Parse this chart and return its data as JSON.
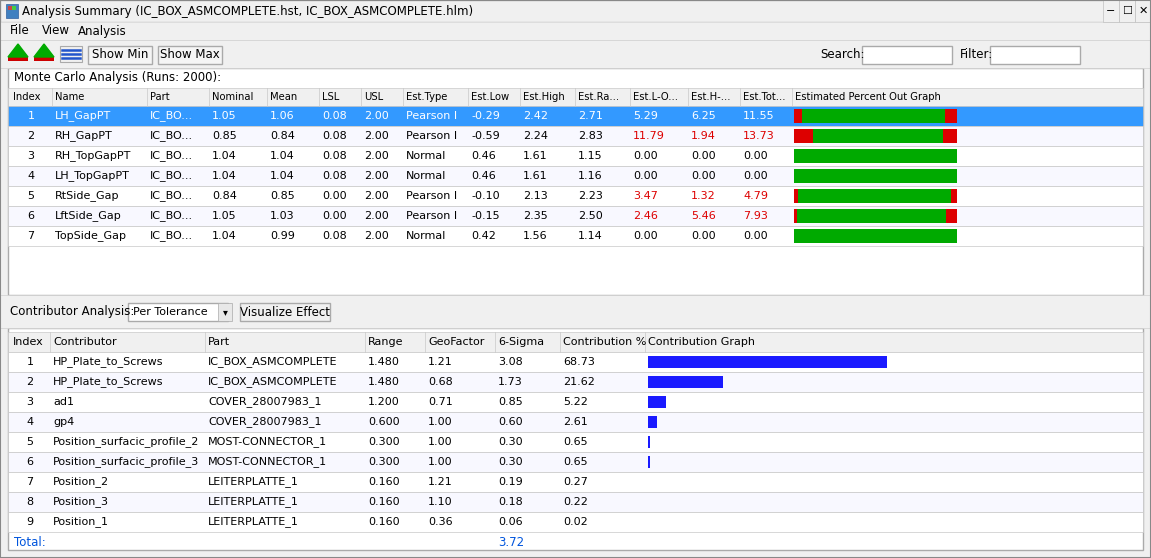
{
  "title": "Analysis Summary (IC_BOX_ASMCOMPLETE.hst, IC_BOX_ASMCOMPLETE.hlm)",
  "menu_items": [
    "File",
    "View",
    "Analysis"
  ],
  "toolbar_buttons": [
    "Show Min",
    "Show Max"
  ],
  "search_label": "Search:",
  "filter_label": "Filter:",
  "mc_section_title": "Monte Carlo Analysis (Runs: 2000):",
  "mc_headers": [
    "Index",
    "Name",
    "Part",
    "Nominal",
    "Mean",
    "LSL",
    "USL",
    "Est.Type",
    "Est.Low",
    "Est.High",
    "Est.Ra...",
    "Est.L-O...",
    "Est.H-...",
    "Est.Tot...",
    "Estimated Percent Out Graph"
  ],
  "mc_col_widths": [
    42,
    95,
    62,
    58,
    52,
    42,
    42,
    65,
    52,
    55,
    55,
    58,
    52,
    52,
    167
  ],
  "mc_rows": [
    [
      1,
      "LH_GapPT",
      "IC_BO...",
      "1.05",
      "1.06",
      "0.08",
      "2.00",
      "Pearson I",
      "-0.29",
      "2.42",
      "2.71",
      "5.29",
      "6.25",
      "11.55",
      [
        5,
        88,
        7
      ]
    ],
    [
      2,
      "RH_GapPT",
      "IC_BO...",
      "0.85",
      "0.84",
      "0.08",
      "2.00",
      "Pearson I",
      "-0.59",
      "2.24",
      "2.83",
      "11.79",
      "1.94",
      "13.73",
      [
        12,
        80,
        8
      ]
    ],
    [
      3,
      "RH_TopGapPT",
      "IC_BO...",
      "1.04",
      "1.04",
      "0.08",
      "2.00",
      "Normal",
      "0.46",
      "1.61",
      "1.15",
      "0.00",
      "0.00",
      "0.00",
      [
        0,
        100,
        0
      ]
    ],
    [
      4,
      "LH_TopGapPT",
      "IC_BO...",
      "1.04",
      "1.04",
      "0.08",
      "2.00",
      "Normal",
      "0.46",
      "1.61",
      "1.16",
      "0.00",
      "0.00",
      "0.00",
      [
        0,
        100,
        0
      ]
    ],
    [
      5,
      "RtSide_Gap",
      "IC_BO...",
      "0.84",
      "0.85",
      "0.00",
      "2.00",
      "Pearson I",
      "-0.10",
      "2.13",
      "2.23",
      "3.47",
      "1.32",
      "4.79",
      [
        3,
        94,
        3
      ]
    ],
    [
      6,
      "LftSide_Gap",
      "IC_BO...",
      "1.05",
      "1.03",
      "0.00",
      "2.00",
      "Pearson I",
      "-0.15",
      "2.35",
      "2.50",
      "2.46",
      "5.46",
      "7.93",
      [
        2,
        92,
        6
      ]
    ],
    [
      7,
      "TopSide_Gap",
      "IC_BO...",
      "1.04",
      "0.99",
      "0.08",
      "2.00",
      "Normal",
      "0.42",
      "1.56",
      "1.14",
      "0.00",
      "0.00",
      "0.00",
      [
        0,
        100,
        0
      ]
    ]
  ],
  "mc_selected_row": 0,
  "mc_red_col_indices": [
    11,
    12,
    13
  ],
  "contributor_section_title": "Contributor Analysis:",
  "contributor_dropdown": "Per Tolerance",
  "contributor_button": "Visualize Effect",
  "contributor_headers": [
    "Index",
    "Contributor",
    "Part",
    "Range",
    "GeoFactor",
    "6-Sigma",
    "Contribution %",
    "Contribution Graph"
  ],
  "contributor_col_widths": [
    40,
    155,
    160,
    60,
    70,
    65,
    85,
    250
  ],
  "contributor_rows": [
    [
      1,
      "HP_Plate_to_Screws",
      "IC_BOX_ASMCOMPLETE",
      "1.480",
      "1.21",
      "3.08",
      "68.73",
      68.73
    ],
    [
      2,
      "HP_Plate_to_Screws",
      "IC_BOX_ASMCOMPLETE",
      "1.480",
      "0.68",
      "1.73",
      "21.62",
      21.62
    ],
    [
      3,
      "ad1",
      "COVER_28007983_1",
      "1.200",
      "0.71",
      "0.85",
      "5.22",
      5.22
    ],
    [
      4,
      "gp4",
      "COVER_28007983_1",
      "0.600",
      "1.00",
      "0.60",
      "2.61",
      2.61
    ],
    [
      5,
      "Position_surfacic_profile_2",
      "MOST-CONNECTOR_1",
      "0.300",
      "1.00",
      "0.30",
      "0.65",
      0.65
    ],
    [
      6,
      "Position_surfacic_profile_3",
      "MOST-CONNECTOR_1",
      "0.300",
      "1.00",
      "0.30",
      "0.65",
      0.65
    ],
    [
      7,
      "Position_2",
      "LEITERPLATTE_1",
      "0.160",
      "1.21",
      "0.19",
      "0.27",
      0.27
    ],
    [
      8,
      "Position_3",
      "LEITERPLATTE_1",
      "0.160",
      "1.10",
      "0.18",
      "0.22",
      0.22
    ],
    [
      9,
      "Position_1",
      "LEITERPLATTE_1",
      "0.160",
      "0.36",
      "0.06",
      "0.02",
      0.02
    ]
  ],
  "total_label": "Total:",
  "total_value": "3.72",
  "bg_color": "#f0f0f0",
  "table_bg": "#ffffff",
  "selected_row_bg": "#3399ff",
  "selected_row_fg": "#ffffff",
  "grid_color": "#c8c8c8",
  "red_text_color": "#dd0000",
  "blue_bar_color": "#1a1aff",
  "green_bar_color": "#00aa00",
  "red_bar_color": "#dd0000",
  "border_color": "#aaaaaa"
}
